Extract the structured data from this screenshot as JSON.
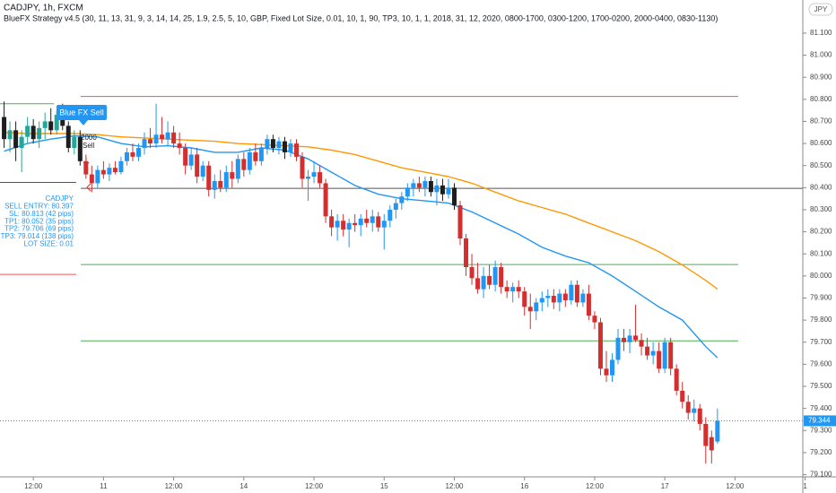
{
  "chart_data": {
    "type": "candlestick",
    "title": "CADJPY, 1h, FXCM",
    "subtitle": "BlueFX Strategy v4.5 (30, 11, 13, 31, 9, 3, 14, 14, 25, 1.9, 2.5, 5, 10, GBP, Fixed Lot Size, 0.01, 10, 1, 90, TP3, 10, 1, 1, 2018, 31, 12, 2020, 0800-1700, 0300-1200, 1700-0200, 2000-0400, 0830-1130)",
    "currency": "JPY",
    "signal_label": "Blue FX Sell",
    "signal_notes": [
      "2000",
      "Sell"
    ],
    "info": [
      "CADJPY",
      "SELL ENTRY: 80.397",
      "SL: 80.813 (42 pips)",
      "TP1: 80.052 (35 pips)",
      "TP2: 79.706 (69 pips)",
      "TP3: 79.014 (138 pips)",
      "LOT SIZE: 0.01"
    ],
    "last_price": 79.344,
    "ylim": [
      79.09,
      81.25
    ],
    "yticks": [
      {
        "value": 79.1,
        "label": "79.100"
      },
      {
        "value": 79.2,
        "label": "79.200"
      },
      {
        "value": 79.3,
        "label": "79.300"
      },
      {
        "value": 79.4,
        "label": "79.400"
      },
      {
        "value": 79.5,
        "label": "79.500"
      },
      {
        "value": 79.6,
        "label": "79.600"
      },
      {
        "value": 79.7,
        "label": "79.700"
      },
      {
        "value": 79.8,
        "label": "79.800"
      },
      {
        "value": 79.9,
        "label": "79.900"
      },
      {
        "value": 80.0,
        "label": "80.000"
      },
      {
        "value": 80.1,
        "label": "80.100"
      },
      {
        "value": 80.2,
        "label": "80.200"
      },
      {
        "value": 80.3,
        "label": "80.300"
      },
      {
        "value": 80.4,
        "label": "80.400"
      },
      {
        "value": 80.5,
        "label": "80.500"
      },
      {
        "value": 80.6,
        "label": "80.600"
      },
      {
        "value": 80.7,
        "label": "80.700"
      },
      {
        "value": 80.8,
        "label": "80.800"
      },
      {
        "value": 80.9,
        "label": "80.900"
      },
      {
        "value": 81.0,
        "label": "81.000"
      },
      {
        "value": 81.1,
        "label": "81.100"
      }
    ],
    "xlim": [
      -0.7,
      136.6
    ],
    "xticks": [
      {
        "value": 5,
        "label": "12:00"
      },
      {
        "value": 17,
        "label": "11"
      },
      {
        "value": 29,
        "label": "12:00"
      },
      {
        "value": 41,
        "label": "14"
      },
      {
        "value": 53,
        "label": "12:00"
      },
      {
        "value": 65,
        "label": "15"
      },
      {
        "value": 77,
        "label": "12:00"
      },
      {
        "value": 89,
        "label": "16"
      },
      {
        "value": 101,
        "label": "12:00"
      },
      {
        "value": 113,
        "label": "17"
      },
      {
        "value": 125,
        "label": "12:00"
      },
      {
        "value": 137,
        "label": "1"
      }
    ],
    "levels": [
      {
        "value": 80.813,
        "color": "#ef5350"
      },
      {
        "value": 80.397,
        "color": "#555555"
      },
      {
        "value": 80.052,
        "color": "#4caf50"
      },
      {
        "value": 79.706,
        "color": "#4caf50"
      }
    ],
    "prior_levels": [
      {
        "value": 80.78,
        "color": "#4caf50"
      },
      {
        "value": 80.424,
        "color": "#555555"
      },
      {
        "value": 80.007,
        "color": "#ef5350"
      }
    ],
    "lines": [
      {
        "color": "#ff9800",
        "x": [
          0,
          4,
          8,
          12,
          16,
          20,
          24,
          28,
          32,
          36,
          40,
          44,
          48,
          52,
          56,
          60,
          64,
          68,
          72,
          76,
          80,
          84,
          88,
          92,
          96,
          100,
          104,
          108,
          112,
          116,
          120,
          122
        ],
        "values": [
          80.65,
          80.645,
          80.645,
          80.645,
          80.64,
          80.63,
          80.625,
          80.62,
          80.615,
          80.61,
          80.6,
          80.595,
          80.59,
          80.585,
          80.57,
          80.55,
          80.52,
          80.49,
          80.47,
          80.45,
          80.42,
          80.38,
          80.34,
          80.31,
          80.28,
          80.24,
          80.2,
          80.16,
          80.11,
          80.05,
          79.98,
          79.94
        ]
      },
      {
        "color": "#2196f3",
        "x": [
          0,
          4,
          8,
          12,
          16,
          20,
          24,
          28,
          32,
          36,
          40,
          44,
          48,
          52,
          56,
          60,
          64,
          68,
          72,
          76,
          80,
          84,
          88,
          92,
          96,
          100,
          104,
          108,
          112,
          116,
          120,
          122
        ],
        "values": [
          80.565,
          80.6,
          80.62,
          80.635,
          80.63,
          80.6,
          80.585,
          80.59,
          80.58,
          80.56,
          80.56,
          80.58,
          80.57,
          80.53,
          80.47,
          80.41,
          80.37,
          80.35,
          80.34,
          80.33,
          80.29,
          80.24,
          80.19,
          80.13,
          80.09,
          80.06,
          80.0,
          79.93,
          79.86,
          79.8,
          79.68,
          79.63
        ]
      }
    ],
    "candles": [
      [
        80.72,
        80.79,
        80.58,
        80.62
      ],
      [
        80.62,
        80.7,
        80.56,
        80.66
      ],
      [
        80.66,
        80.7,
        80.52,
        80.58
      ],
      [
        80.58,
        80.66,
        80.47,
        80.63
      ],
      [
        80.63,
        80.72,
        80.6,
        80.68
      ],
      [
        80.68,
        80.71,
        80.6,
        80.62
      ],
      [
        80.62,
        80.7,
        80.58,
        80.67
      ],
      [
        80.67,
        80.74,
        80.62,
        80.7
      ],
      [
        80.7,
        80.76,
        80.64,
        80.66
      ],
      [
        80.66,
        80.75,
        80.64,
        80.73
      ],
      [
        80.73,
        80.78,
        80.66,
        80.68
      ],
      [
        80.68,
        80.7,
        80.56,
        80.58
      ],
      [
        80.58,
        80.66,
        80.55,
        80.63
      ],
      [
        80.63,
        80.66,
        80.5,
        80.52
      ],
      [
        80.52,
        80.55,
        80.44,
        80.46
      ],
      [
        80.46,
        80.5,
        80.38,
        80.42
      ],
      [
        80.42,
        80.5,
        80.4,
        80.48
      ],
      [
        80.48,
        80.52,
        80.44,
        80.46
      ],
      [
        80.46,
        80.51,
        80.43,
        80.49
      ],
      [
        80.49,
        80.52,
        80.46,
        80.47
      ],
      [
        80.47,
        80.54,
        80.46,
        80.52
      ],
      [
        80.52,
        80.58,
        80.5,
        80.56
      ],
      [
        80.56,
        80.6,
        80.52,
        80.54
      ],
      [
        80.54,
        80.6,
        80.52,
        80.58
      ],
      [
        80.58,
        80.65,
        80.55,
        80.62
      ],
      [
        80.62,
        80.67,
        80.58,
        80.6
      ],
      [
        80.6,
        80.78,
        80.58,
        80.64
      ],
      [
        80.64,
        80.72,
        80.6,
        80.62
      ],
      [
        80.62,
        80.7,
        80.59,
        80.65
      ],
      [
        80.65,
        80.68,
        80.58,
        80.6
      ],
      [
        80.6,
        80.65,
        80.55,
        80.58
      ],
      [
        80.58,
        80.6,
        80.46,
        80.5
      ],
      [
        80.5,
        80.58,
        80.48,
        80.55
      ],
      [
        80.55,
        80.58,
        80.42,
        80.45
      ],
      [
        80.45,
        80.52,
        80.43,
        80.5
      ],
      [
        80.5,
        80.52,
        80.36,
        80.39
      ],
      [
        80.39,
        80.46,
        80.35,
        80.43
      ],
      [
        80.43,
        80.48,
        80.38,
        80.4
      ],
      [
        80.4,
        80.5,
        80.38,
        80.47
      ],
      [
        80.47,
        80.52,
        80.4,
        80.44
      ],
      [
        80.44,
        80.55,
        80.42,
        80.53
      ],
      [
        80.53,
        80.56,
        80.45,
        80.48
      ],
      [
        80.48,
        80.58,
        80.46,
        80.56
      ],
      [
        80.56,
        80.6,
        80.5,
        80.52
      ],
      [
        80.52,
        80.6,
        80.5,
        80.58
      ],
      [
        80.58,
        80.64,
        80.55,
        80.62
      ],
      [
        80.62,
        80.64,
        80.56,
        80.58
      ],
      [
        80.58,
        80.63,
        80.55,
        80.61
      ],
      [
        80.61,
        80.63,
        80.53,
        80.56
      ],
      [
        80.56,
        80.62,
        80.54,
        80.6
      ],
      [
        80.6,
        80.62,
        80.52,
        80.54
      ],
      [
        80.54,
        80.56,
        80.4,
        80.44
      ],
      [
        80.44,
        80.48,
        80.34,
        80.45
      ],
      [
        80.45,
        80.52,
        80.42,
        80.47
      ],
      [
        80.47,
        80.5,
        80.4,
        80.42
      ],
      [
        80.42,
        80.44,
        80.24,
        80.27
      ],
      [
        80.27,
        80.3,
        80.18,
        80.22
      ],
      [
        80.22,
        80.28,
        80.16,
        80.25
      ],
      [
        80.25,
        80.28,
        80.18,
        80.21
      ],
      [
        80.21,
        80.26,
        80.13,
        80.24
      ],
      [
        80.24,
        80.28,
        80.2,
        80.23
      ],
      [
        80.23,
        80.28,
        80.18,
        80.26
      ],
      [
        80.26,
        80.3,
        80.22,
        80.24
      ],
      [
        80.24,
        80.3,
        80.2,
        80.27
      ],
      [
        80.27,
        80.29,
        80.2,
        80.22
      ],
      [
        80.22,
        80.28,
        80.12,
        80.25
      ],
      [
        80.25,
        80.32,
        80.22,
        80.3
      ],
      [
        80.3,
        80.35,
        80.26,
        80.33
      ],
      [
        80.33,
        80.38,
        80.3,
        80.36
      ],
      [
        80.36,
        80.42,
        80.34,
        80.4
      ],
      [
        80.4,
        80.44,
        80.36,
        80.42
      ],
      [
        80.42,
        80.45,
        80.38,
        80.4
      ],
      [
        80.4,
        80.45,
        80.36,
        80.43
      ],
      [
        80.43,
        80.45,
        80.36,
        80.38
      ],
      [
        80.38,
        80.44,
        80.32,
        80.41
      ],
      [
        80.41,
        80.44,
        80.34,
        80.37
      ],
      [
        80.37,
        80.44,
        80.35,
        80.4
      ],
      [
        80.4,
        80.42,
        80.3,
        80.32
      ],
      [
        80.32,
        80.34,
        80.14,
        80.17
      ],
      [
        80.17,
        80.19,
        80.0,
        80.04
      ],
      [
        80.04,
        80.1,
        79.96,
        79.99
      ],
      [
        79.99,
        80.06,
        79.92,
        79.94
      ],
      [
        79.94,
        80.04,
        79.9,
        80.0
      ],
      [
        80.0,
        80.05,
        79.94,
        79.96
      ],
      [
        79.96,
        80.07,
        79.93,
        80.04
      ],
      [
        80.04,
        80.06,
        79.92,
        79.95
      ],
      [
        79.95,
        79.98,
        79.9,
        79.93
      ],
      [
        79.93,
        79.97,
        79.88,
        79.95
      ],
      [
        79.95,
        79.98,
        79.9,
        79.93
      ],
      [
        79.93,
        79.95,
        79.82,
        79.86
      ],
      [
        79.86,
        79.92,
        79.76,
        79.84
      ],
      [
        79.84,
        79.9,
        79.8,
        79.88
      ],
      [
        79.88,
        79.93,
        79.84,
        79.9
      ],
      [
        79.9,
        79.94,
        79.86,
        79.91
      ],
      [
        79.91,
        79.94,
        79.85,
        79.88
      ],
      [
        79.88,
        79.94,
        79.84,
        79.92
      ],
      [
        79.92,
        79.94,
        79.86,
        79.89
      ],
      [
        79.89,
        79.98,
        79.87,
        79.96
      ],
      [
        79.96,
        79.98,
        79.86,
        79.88
      ],
      [
        79.88,
        79.94,
        79.86,
        79.92
      ],
      [
        79.92,
        79.96,
        79.8,
        79.82
      ],
      [
        79.82,
        79.84,
        79.76,
        79.79
      ],
      [
        79.79,
        79.81,
        79.55,
        79.58
      ],
      [
        79.58,
        79.66,
        79.52,
        79.55
      ],
      [
        79.55,
        79.65,
        79.52,
        79.62
      ],
      [
        79.62,
        79.76,
        79.6,
        79.72
      ],
      [
        79.72,
        79.76,
        79.66,
        79.7
      ],
      [
        79.7,
        79.76,
        79.65,
        79.73
      ],
      [
        79.73,
        79.87,
        79.7,
        79.71
      ],
      [
        79.71,
        79.74,
        79.64,
        79.68
      ],
      [
        79.68,
        79.72,
        79.62,
        79.64
      ],
      [
        79.64,
        79.7,
        79.6,
        79.66
      ],
      [
        79.66,
        79.7,
        79.56,
        79.58
      ],
      [
        79.58,
        79.72,
        79.56,
        79.7
      ],
      [
        79.7,
        79.72,
        79.55,
        79.58
      ],
      [
        79.58,
        79.6,
        79.46,
        79.48
      ],
      [
        79.48,
        79.52,
        79.4,
        79.43
      ],
      [
        79.43,
        79.46,
        79.35,
        79.38
      ],
      [
        79.38,
        79.44,
        79.34,
        79.4
      ],
      [
        79.4,
        79.42,
        79.3,
        79.33
      ],
      [
        79.33,
        79.36,
        79.15,
        79.23
      ],
      [
        79.27,
        79.3,
        79.15,
        79.21
      ],
      [
        79.25,
        79.4,
        79.24,
        79.344
      ]
    ],
    "candle_colors": [
      "#1e1e1e",
      "#26a69a",
      "#1e1e1e",
      "#26a69a",
      "#26a69a",
      "#1e1e1e",
      "#26a69a",
      "#26a69a",
      "#1e1e1e",
      "#26a69a",
      "#1e1e1e",
      "#1e1e1e",
      "#26a69a",
      "#1e1e1e",
      "#d32f2f",
      "#d32f2f",
      "#2196f3",
      "#d32f2f",
      "#2196f3",
      "#d32f2f",
      "#2196f3",
      "#2196f3",
      "#d32f2f",
      "#2196f3",
      "#2196f3",
      "#d32f2f",
      "#2196f3",
      "#d32f2f",
      "#2196f3",
      "#d32f2f",
      "#d32f2f",
      "#d32f2f",
      "#2196f3",
      "#d32f2f",
      "#2196f3",
      "#d32f2f",
      "#2196f3",
      "#d32f2f",
      "#2196f3",
      "#d32f2f",
      "#2196f3",
      "#d32f2f",
      "#2196f3",
      "#d32f2f",
      "#2196f3",
      "#2196f3",
      "#1e1e1e",
      "#2196f3",
      "#1e1e1e",
      "#2196f3",
      "#d32f2f",
      "#d32f2f",
      "#2196f3",
      "#2196f3",
      "#d32f2f",
      "#d32f2f",
      "#d32f2f",
      "#2196f3",
      "#d32f2f",
      "#2196f3",
      "#d32f2f",
      "#2196f3",
      "#d32f2f",
      "#2196f3",
      "#d32f2f",
      "#2196f3",
      "#2196f3",
      "#2196f3",
      "#2196f3",
      "#2196f3",
      "#2196f3",
      "#d32f2f",
      "#2196f3",
      "#1e1e1e",
      "#2196f3",
      "#1e1e1e",
      "#2196f3",
      "#1e1e1e",
      "#d32f2f",
      "#d32f2f",
      "#d32f2f",
      "#d32f2f",
      "#2196f3",
      "#d32f2f",
      "#2196f3",
      "#d32f2f",
      "#d32f2f",
      "#2196f3",
      "#d32f2f",
      "#d32f2f",
      "#d32f2f",
      "#2196f3",
      "#2196f3",
      "#2196f3",
      "#d32f2f",
      "#2196f3",
      "#d32f2f",
      "#2196f3",
      "#d32f2f",
      "#2196f3",
      "#d32f2f",
      "#d32f2f",
      "#d32f2f",
      "#d32f2f",
      "#2196f3",
      "#2196f3",
      "#d32f2f",
      "#2196f3",
      "#d32f2f",
      "#d32f2f",
      "#d32f2f",
      "#2196f3",
      "#d32f2f",
      "#2196f3",
      "#d32f2f",
      "#d32f2f",
      "#d32f2f",
      "#d32f2f",
      "#2196f3",
      "#d32f2f",
      "#d32f2f",
      "#d32f2f",
      "#2196f3"
    ]
  }
}
